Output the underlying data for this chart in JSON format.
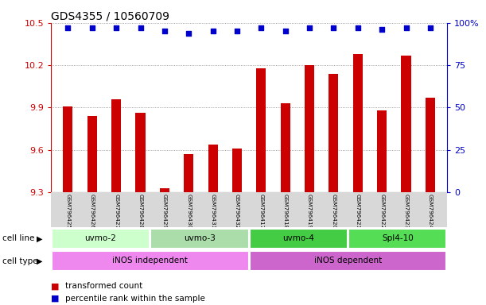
{
  "title": "GDS4355 / 10560709",
  "samples": [
    "GSM796425",
    "GSM796426",
    "GSM796427",
    "GSM796428",
    "GSM796429",
    "GSM796430",
    "GSM796431",
    "GSM796432",
    "GSM796417",
    "GSM796418",
    "GSM796419",
    "GSM796420",
    "GSM796421",
    "GSM796422",
    "GSM796423",
    "GSM796424"
  ],
  "bar_values": [
    9.91,
    9.84,
    9.96,
    9.86,
    9.33,
    9.57,
    9.64,
    9.61,
    10.18,
    9.93,
    10.2,
    10.14,
    10.28,
    9.88,
    10.27,
    9.97
  ],
  "dot_values": [
    97,
    97,
    97,
    97,
    95,
    94,
    95,
    95,
    97,
    95,
    97,
    97,
    97,
    96,
    97,
    97
  ],
  "ylim_left": [
    9.3,
    10.5
  ],
  "ylim_right": [
    0,
    100
  ],
  "yticks_left": [
    9.3,
    9.6,
    9.9,
    10.2,
    10.5
  ],
  "ytick_labels_left": [
    "9.3",
    "9.6",
    "9.9",
    "10.2",
    "10.5"
  ],
  "yticks_right": [
    0,
    25,
    50,
    75,
    100
  ],
  "ytick_labels_right": [
    "0",
    "25",
    "50",
    "75",
    "100%"
  ],
  "bar_color": "#cc0000",
  "dot_color": "#0000cc",
  "cell_line_groups": [
    {
      "label": "uvmo-2",
      "start": 0,
      "end": 4,
      "color": "#ccffcc"
    },
    {
      "label": "uvmo-3",
      "start": 4,
      "end": 8,
      "color": "#aaddaa"
    },
    {
      "label": "uvmo-4",
      "start": 8,
      "end": 12,
      "color": "#44cc44"
    },
    {
      "label": "Spl4-10",
      "start": 12,
      "end": 16,
      "color": "#55dd55"
    }
  ],
  "cell_type_groups": [
    {
      "label": "iNOS independent",
      "start": 0,
      "end": 8,
      "color": "#ee88ee"
    },
    {
      "label": "iNOS dependent",
      "start": 8,
      "end": 16,
      "color": "#cc66cc"
    }
  ],
  "legend_items": [
    {
      "label": "transformed count",
      "color": "#cc0000"
    },
    {
      "label": "percentile rank within the sample",
      "color": "#0000cc"
    }
  ],
  "grid_color": "#888888",
  "title_fontsize": 10,
  "axis_label_color_left": "#cc0000",
  "axis_label_color_right": "#0000cc",
  "bar_width": 0.4,
  "label_fontsize": 6,
  "group_fontsize": 7.5,
  "legend_fontsize": 7.5
}
